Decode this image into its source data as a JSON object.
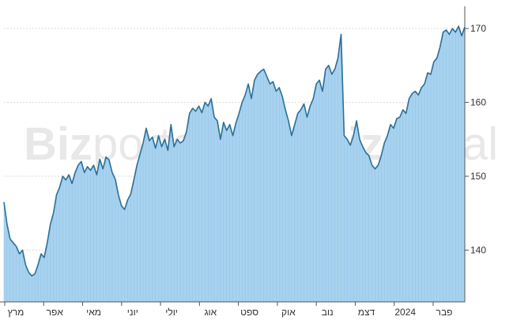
{
  "chart_data": {
    "type": "area",
    "watermarks": [
      "Bizportal",
      "Bizportal"
    ],
    "y_ticks": [
      140,
      150,
      160,
      170
    ],
    "ylim": [
      133,
      173
    ],
    "x_tick_labels": [
      "מרץ",
      "אפר",
      "מאי",
      "יוני",
      "יולי",
      "אוג",
      "ספט",
      "אוק",
      "נוב",
      "דצמ",
      "2024",
      "פבר"
    ],
    "grid": "horizontal",
    "colors": {
      "line": "#2a6f97",
      "fill": "#a8d2ef",
      "grid": "#dddddd",
      "axis": "#555555"
    },
    "series": [
      {
        "values": [
          146.5,
          143.5,
          141.5,
          141.0,
          140.5,
          139.5,
          140.0,
          138.0,
          137.0,
          136.5,
          136.8,
          138.0,
          139.5,
          139.0,
          141.0,
          143.5,
          145.0,
          147.5,
          148.5,
          150.0,
          149.5,
          150.2,
          149.0,
          150.5,
          151.5,
          152.0,
          150.5,
          151.3,
          150.8,
          151.5,
          150.2,
          152.3,
          151.0,
          152.6,
          152.2,
          150.5,
          149.6,
          147.5,
          146.0,
          145.5,
          146.8,
          147.6,
          149.5,
          151.5,
          153.0,
          154.5,
          156.5,
          154.8,
          155.3,
          153.8,
          155.5,
          154.0,
          155.0,
          153.5,
          157.0,
          154.0,
          155.0,
          154.5,
          154.8,
          156.0,
          158.5,
          159.2,
          158.8,
          159.5,
          158.6,
          160.0,
          159.5,
          160.5,
          158.0,
          157.5,
          155.0,
          157.3,
          156.2,
          157.0,
          155.5,
          157.2,
          158.5,
          160.0,
          161.0,
          162.5,
          160.5,
          163.0,
          163.8,
          164.2,
          164.5,
          163.5,
          162.5,
          162.8,
          161.5,
          162.0,
          160.8,
          159.0,
          157.5,
          155.5,
          157.0,
          158.5,
          159.0,
          159.8,
          158.0,
          159.5,
          160.5,
          162.5,
          163.0,
          161.5,
          164.5,
          165.0,
          163.8,
          164.5,
          166.0,
          169.2,
          155.5,
          155.0,
          154.2,
          155.5,
          157.5,
          155.0,
          154.0,
          153.2,
          152.8,
          151.5,
          151.0,
          151.5,
          152.8,
          154.5,
          155.5,
          157.0,
          156.5,
          157.8,
          158.0,
          159.0,
          158.5,
          160.5,
          161.2,
          161.5,
          161.0,
          162.0,
          162.5,
          164.0,
          163.8,
          165.5,
          166.0,
          167.5,
          169.5,
          169.8,
          169.2,
          170.0,
          169.5,
          170.3,
          169.0,
          170.2
        ]
      }
    ]
  }
}
